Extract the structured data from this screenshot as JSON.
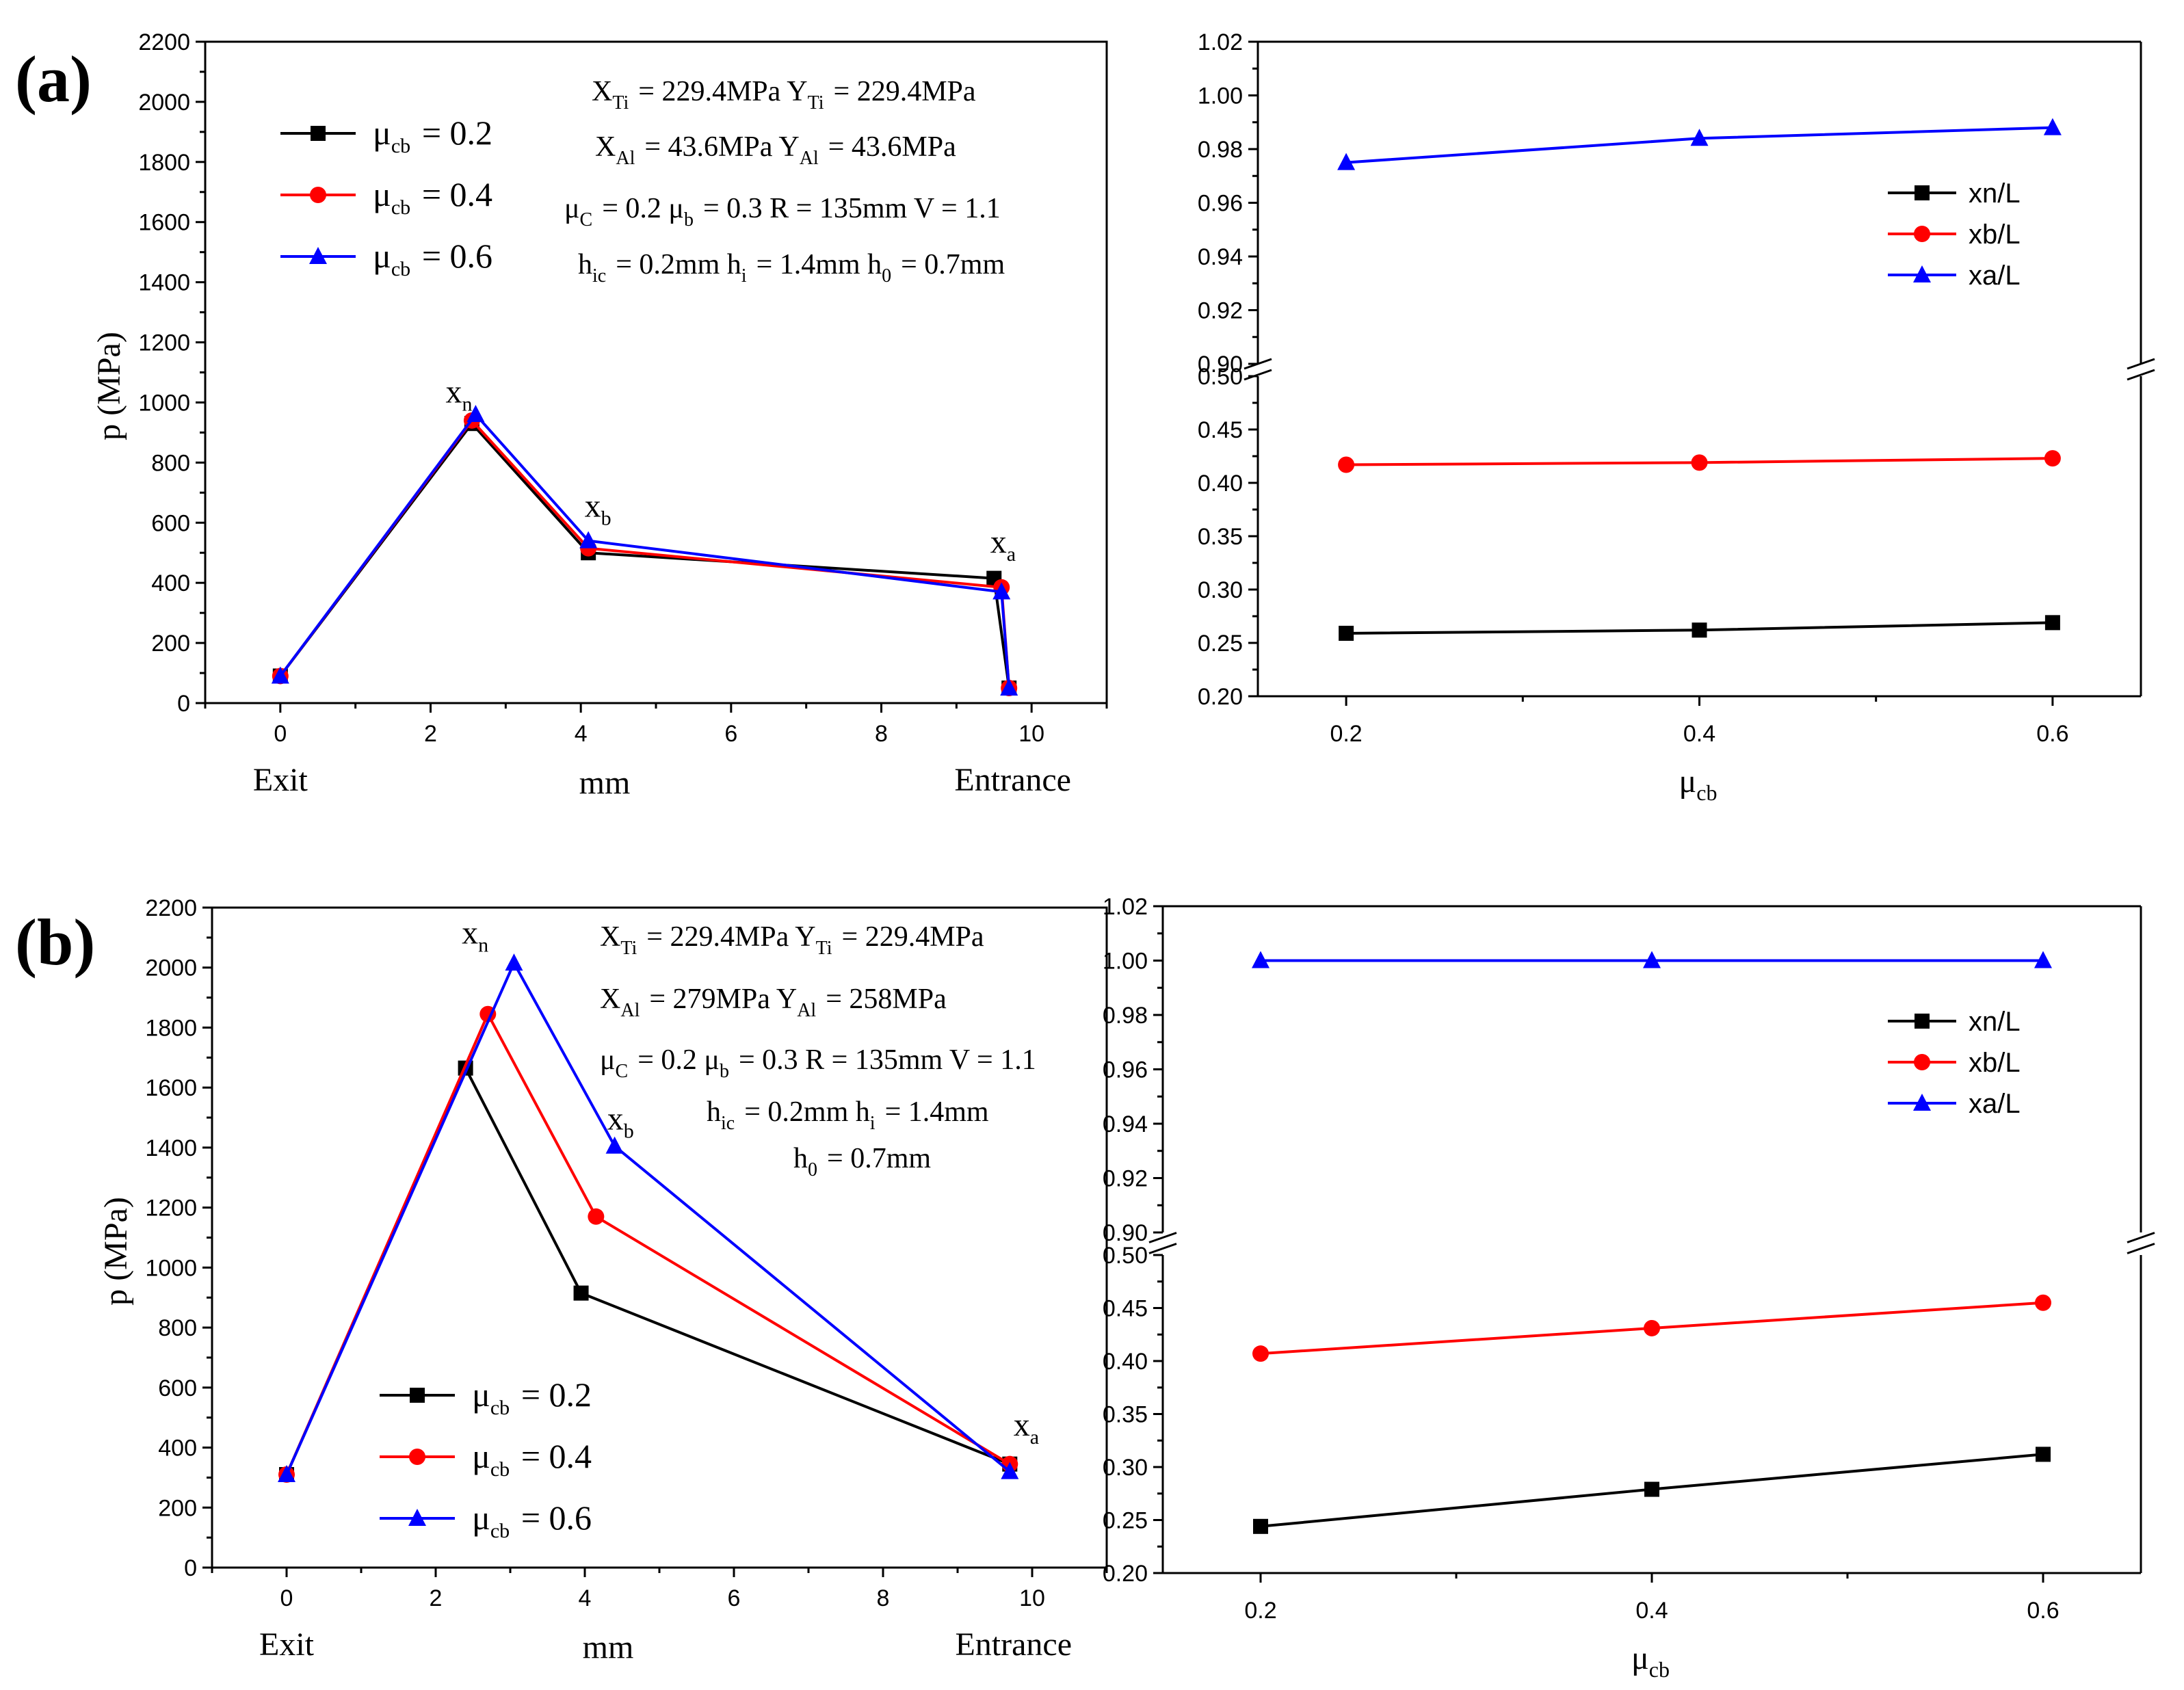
{
  "panels": [
    {
      "tag": "(a)",
      "left": {
        "ylabel": "p (MPa)",
        "xlabel": "mm",
        "exit_label": "Exit",
        "entrance_label": "Entrance",
        "xticks": [
          0,
          2,
          4,
          6,
          8,
          10
        ],
        "yticks": [
          0,
          200,
          400,
          600,
          800,
          1000,
          1200,
          1400,
          1600,
          1800,
          2000,
          2200
        ],
        "point_labels": [
          {
            "main": "x",
            "sub": "n",
            "x": 2.2,
            "y": 1000
          },
          {
            "main": "x",
            "sub": "b",
            "x": 4.05,
            "y": 620
          },
          {
            "main": "x",
            "sub": "a",
            "x": 9.45,
            "y": 500
          }
        ],
        "annotations": [
          [
            {
              "t": "X",
              "s": "Ti"
            },
            {
              "t": " = 229.4MPa    "
            },
            {
              "t": "Y",
              "s": "Ti"
            },
            {
              "t": " = 229.4MPa"
            }
          ],
          [
            {
              "t": "X",
              "s": "Al"
            },
            {
              "t": " = 43.6MPa    "
            },
            {
              "t": "Y",
              "s": "Al"
            },
            {
              "t": " = 43.6MPa"
            }
          ],
          [
            {
              "t": "μ",
              "s": "C"
            },
            {
              "t": " = 0.2   "
            },
            {
              "t": "μ",
              "s": "b"
            },
            {
              "t": " = 0.3   R = 135mm  V = 1.1"
            }
          ],
          [
            {
              "t": "h",
              "s": "ic"
            },
            {
              "t": " = 0.2mm     "
            },
            {
              "t": "h",
              "s": "i"
            },
            {
              "t": " = 1.4mm   "
            },
            {
              "t": "h",
              "s": "0"
            },
            {
              "t": " = 0.7mm"
            }
          ]
        ],
        "legend": [
          {
            "prefix": "μ",
            "sub": "cb",
            "suffix": " = 0.2"
          },
          {
            "prefix": "μ",
            "sub": "cb",
            "suffix": " = 0.4"
          },
          {
            "prefix": "μ",
            "sub": "cb",
            "suffix": " = 0.6"
          }
        ]
      },
      "right": {
        "xlabel_main": "μ",
        "xlabel_sub": "cb",
        "xticks": [
          "0.2",
          "0.4",
          "0.6"
        ],
        "upper_yticks": [
          "0.90",
          "0.92",
          "0.94",
          "0.96",
          "0.98",
          "1.00",
          "1.02"
        ],
        "lower_yticks": [
          "0.20",
          "0.25",
          "0.30",
          "0.35",
          "0.40",
          "0.45",
          "0.50"
        ],
        "legend": [
          "xn/L",
          "xb/L",
          "xa/L"
        ]
      }
    },
    {
      "tag": "(b)",
      "left": {
        "ylabel": "p (MPa)",
        "xlabel": "mm",
        "exit_label": "Exit",
        "entrance_label": "Entrance",
        "xticks": [
          0,
          2,
          4,
          6,
          8,
          10
        ],
        "yticks": [
          0,
          200,
          400,
          600,
          800,
          1000,
          1200,
          1400,
          1600,
          1800,
          2000,
          2200
        ],
        "point_labels": [
          {
            "main": "x",
            "sub": "n",
            "x": 2.35,
            "y": 2080
          },
          {
            "main": "x",
            "sub": "b",
            "x": 4.3,
            "y": 1460
          },
          {
            "main": "x",
            "sub": "a",
            "x": 9.75,
            "y": 440
          }
        ],
        "annotations": [
          [
            {
              "t": "X",
              "s": "Ti"
            },
            {
              "t": " = 229.4MPa      "
            },
            {
              "t": "Y",
              "s": "Ti"
            },
            {
              "t": " = 229.4MPa"
            }
          ],
          [
            {
              "t": "X",
              "s": "Al"
            },
            {
              "t": " = 279MPa      "
            },
            {
              "t": "Y",
              "s": "Al"
            },
            {
              "t": " = 258MPa"
            }
          ],
          [
            {
              "t": "μ",
              "s": "C"
            },
            {
              "t": " = 0.2   "
            },
            {
              "t": "μ",
              "s": "b"
            },
            {
              "t": " = 0.3  R = 135mm  V = 1.1"
            }
          ],
          [
            {
              "t": "h",
              "s": "ic"
            },
            {
              "t": " = 0.2mm   "
            },
            {
              "t": "h",
              "s": "i"
            },
            {
              "t": " = 1.4mm"
            }
          ],
          [
            {
              "t": "h",
              "s": "0"
            },
            {
              "t": " = 0.7mm"
            }
          ]
        ],
        "legend": [
          {
            "prefix": "μ",
            "sub": "cb",
            "suffix": " = 0.2"
          },
          {
            "prefix": "μ",
            "sub": "cb",
            "suffix": " = 0.4"
          },
          {
            "prefix": "μ",
            "sub": "cb",
            "suffix": " = 0.6"
          }
        ]
      },
      "right": {
        "xlabel_main": "μ",
        "xlabel_sub": "cb",
        "xticks": [
          "0.2",
          "0.4",
          "0.6"
        ],
        "upper_yticks": [
          "0.90",
          "0.92",
          "0.94",
          "0.96",
          "0.98",
          "1.00",
          "1.02"
        ],
        "lower_yticks": [
          "0.20",
          "0.25",
          "0.30",
          "0.35",
          "0.40",
          "0.45",
          "0.50"
        ],
        "legend": [
          "xn/L",
          "xb/L",
          "xa/L"
        ]
      }
    }
  ],
  "colors": {
    "black": "#000000",
    "red": "#ff0000",
    "blue": "#0000ff"
  },
  "chart_data": [
    {
      "type": "line",
      "panel": "(a) left",
      "xlabel": "mm",
      "ylabel": "p (MPa)",
      "xlim": [
        -1,
        11
      ],
      "ylim": [
        0,
        2200
      ],
      "series": [
        {
          "name": "μcb = 0.2",
          "color": "#000000",
          "marker": "square",
          "x": [
            0,
            2.55,
            4.1,
            9.5,
            9.7
          ],
          "y": [
            90,
            930,
            500,
            415,
            50
          ]
        },
        {
          "name": "μcb = 0.4",
          "color": "#ff0000",
          "marker": "circle",
          "x": [
            0,
            2.55,
            4.1,
            9.6,
            9.7
          ],
          "y": [
            90,
            940,
            515,
            385,
            50
          ]
        },
        {
          "name": "μcb = 0.6",
          "color": "#0000ff",
          "marker": "triangle",
          "x": [
            0,
            2.6,
            4.1,
            9.6,
            9.7
          ],
          "y": [
            90,
            960,
            540,
            370,
            50
          ]
        }
      ]
    },
    {
      "type": "line",
      "panel": "(a) right",
      "xlabel": "μcb",
      "xlim": [
        0.15,
        0.65
      ],
      "y_break": {
        "lower": [
          0.2,
          0.5
        ],
        "upper": [
          0.9,
          1.02
        ]
      },
      "categories": [
        0.2,
        0.4,
        0.6
      ],
      "series": [
        {
          "name": "xn/L",
          "color": "#000000",
          "marker": "square",
          "values": [
            0.259,
            0.262,
            0.269
          ]
        },
        {
          "name": "xb/L",
          "color": "#ff0000",
          "marker": "circle",
          "values": [
            0.417,
            0.419,
            0.423
          ]
        },
        {
          "name": "xa/L",
          "color": "#0000ff",
          "marker": "triangle",
          "values": [
            0.975,
            0.984,
            0.988
          ]
        }
      ]
    },
    {
      "type": "line",
      "panel": "(b) left",
      "xlabel": "mm",
      "ylabel": "p (MPa)",
      "xlim": [
        -1,
        11
      ],
      "ylim": [
        0,
        2200
      ],
      "series": [
        {
          "name": "μcb = 0.2",
          "color": "#000000",
          "marker": "square",
          "x": [
            0,
            2.4,
            3.95,
            9.7
          ],
          "y": [
            310,
            1665,
            915,
            345
          ]
        },
        {
          "name": "μcb = 0.4",
          "color": "#ff0000",
          "marker": "circle",
          "x": [
            0,
            2.7,
            4.15,
            9.7
          ],
          "y": [
            310,
            1845,
            1170,
            345
          ]
        },
        {
          "name": "μcb = 0.6",
          "color": "#0000ff",
          "marker": "triangle",
          "x": [
            0,
            3.05,
            4.4,
            9.7
          ],
          "y": [
            310,
            2015,
            1405,
            320
          ]
        }
      ]
    },
    {
      "type": "line",
      "panel": "(b) right",
      "xlabel": "μcb",
      "xlim": [
        0.15,
        0.65
      ],
      "y_break": {
        "lower": [
          0.2,
          0.5
        ],
        "upper": [
          0.9,
          1.02
        ]
      },
      "categories": [
        0.2,
        0.4,
        0.6
      ],
      "series": [
        {
          "name": "xn/L",
          "color": "#000000",
          "marker": "square",
          "values": [
            0.244,
            0.279,
            0.312
          ]
        },
        {
          "name": "xb/L",
          "color": "#ff0000",
          "marker": "circle",
          "values": [
            0.407,
            0.431,
            0.455
          ]
        },
        {
          "name": "xa/L",
          "color": "#0000ff",
          "marker": "triangle",
          "values": [
            1.0,
            1.0,
            1.0
          ]
        }
      ]
    }
  ]
}
